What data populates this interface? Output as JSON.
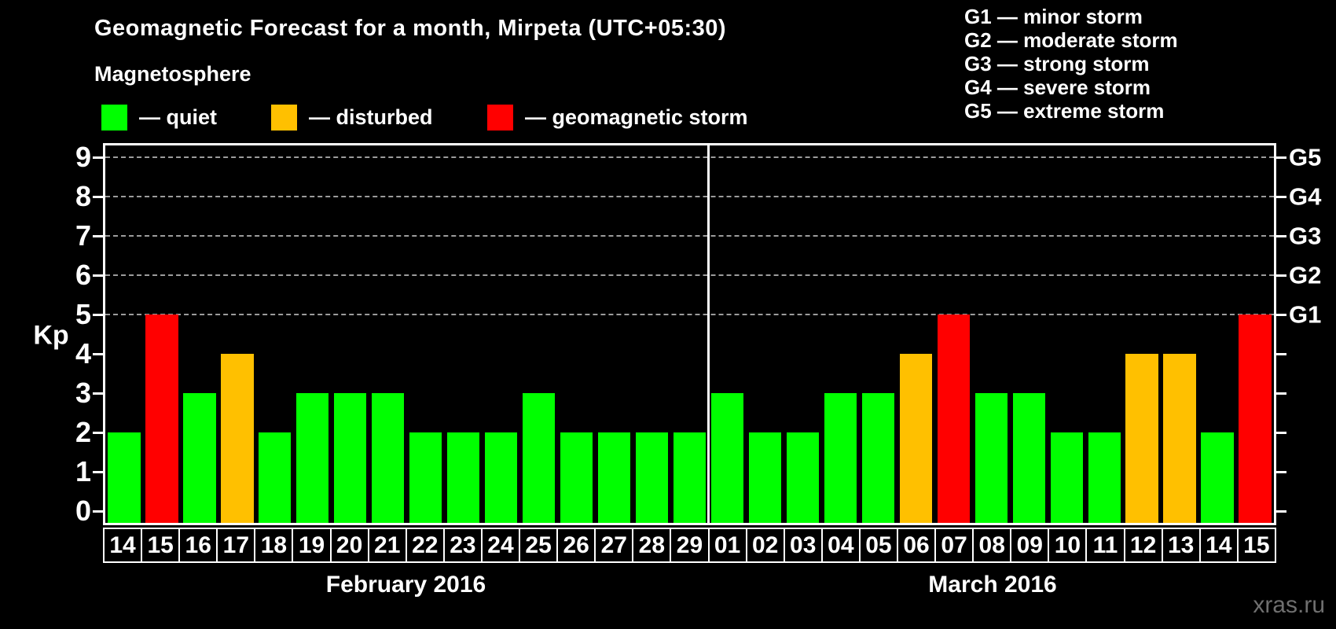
{
  "header": {
    "title": "Geomagnetic Forecast for a month, Mirpeta (UTC+05:30)",
    "subtitle": "Magnetosphere"
  },
  "activity_legend": [
    {
      "id": "quiet",
      "label": "— quiet",
      "color": "#00ff00"
    },
    {
      "id": "disturbed",
      "label": "— disturbed",
      "color": "#ffc000"
    },
    {
      "id": "storm",
      "label": "— geomagnetic storm",
      "color": "#ff0000"
    }
  ],
  "g_scale_legend": [
    "G1 — minor storm",
    "G2 — moderate storm",
    "G3 — strong storm",
    "G4 — severe storm",
    "G5 — extreme storm"
  ],
  "watermark": "xras.ru",
  "chart_data": {
    "type": "bar",
    "ylabel": "Kp",
    "ylim": [
      0,
      9
    ],
    "yticks": [
      0,
      1,
      2,
      3,
      4,
      5,
      6,
      7,
      8,
      9
    ],
    "gridlines": [
      5,
      6,
      7,
      8,
      9
    ],
    "grid_style": "dashed",
    "legend_position": "top",
    "right_axis": [
      {
        "value": 5,
        "label": "G1"
      },
      {
        "value": 6,
        "label": "G2"
      },
      {
        "value": 7,
        "label": "G3"
      },
      {
        "value": 8,
        "label": "G4"
      },
      {
        "value": 9,
        "label": "G5"
      }
    ],
    "colors": {
      "quiet": "#00ff00",
      "disturbed": "#ffc000",
      "storm": "#ff0000"
    },
    "color_thresholds": {
      "disturbed_min": 4,
      "storm_min": 5
    },
    "months": [
      {
        "label": "February 2016",
        "days": [
          {
            "day": "14",
            "kp": 2
          },
          {
            "day": "15",
            "kp": 5
          },
          {
            "day": "16",
            "kp": 3
          },
          {
            "day": "17",
            "kp": 4
          },
          {
            "day": "18",
            "kp": 2
          },
          {
            "day": "19",
            "kp": 3
          },
          {
            "day": "20",
            "kp": 3
          },
          {
            "day": "21",
            "kp": 3
          },
          {
            "day": "22",
            "kp": 2
          },
          {
            "day": "23",
            "kp": 2
          },
          {
            "day": "24",
            "kp": 2
          },
          {
            "day": "25",
            "kp": 3
          },
          {
            "day": "26",
            "kp": 2
          },
          {
            "day": "27",
            "kp": 2
          },
          {
            "day": "28",
            "kp": 2
          },
          {
            "day": "29",
            "kp": 2
          }
        ]
      },
      {
        "label": "March 2016",
        "days": [
          {
            "day": "01",
            "kp": 3
          },
          {
            "day": "02",
            "kp": 2
          },
          {
            "day": "03",
            "kp": 2
          },
          {
            "day": "04",
            "kp": 3
          },
          {
            "day": "05",
            "kp": 3
          },
          {
            "day": "06",
            "kp": 4
          },
          {
            "day": "07",
            "kp": 5
          },
          {
            "day": "08",
            "kp": 3
          },
          {
            "day": "09",
            "kp": 3
          },
          {
            "day": "10",
            "kp": 2
          },
          {
            "day": "11",
            "kp": 2
          },
          {
            "day": "12",
            "kp": 4
          },
          {
            "day": "13",
            "kp": 4
          },
          {
            "day": "14",
            "kp": 2
          },
          {
            "day": "15",
            "kp": 5
          }
        ]
      }
    ]
  }
}
